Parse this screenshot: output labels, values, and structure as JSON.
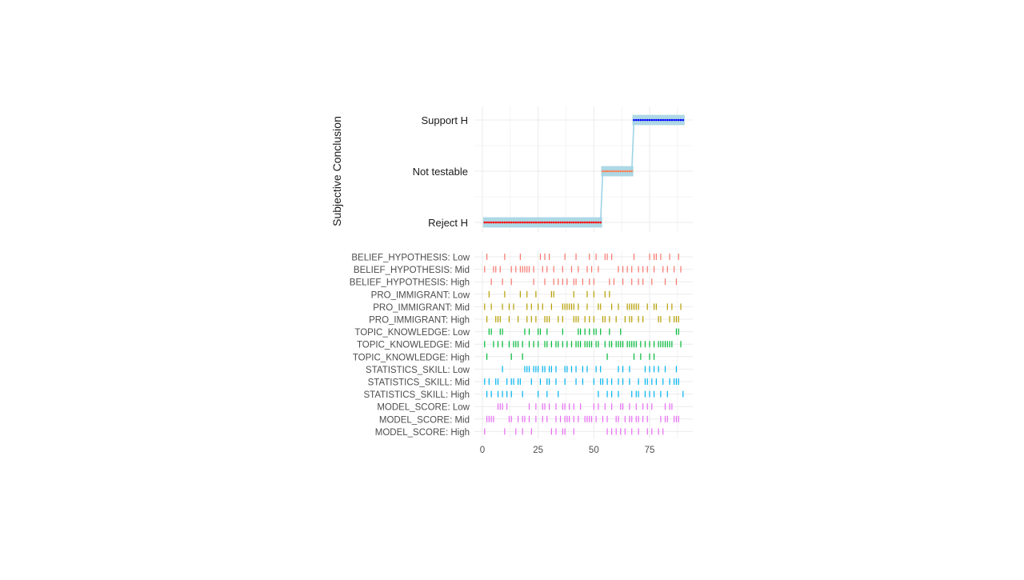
{
  "colors": {
    "ribbon": "#add8e6",
    "ribbon_line": "#9fd3e6",
    "reject": "#ff0000",
    "not_testable": "#ff7f50",
    "support": "#0000ff",
    "grid": "#ebebeb",
    "belief": "#f8766d",
    "pro_immigrant": "#b79f00",
    "topic": "#00ba38",
    "statistics": "#00b4f0",
    "model": "#e76bf3"
  },
  "chart_data": [
    {
      "type": "line",
      "ylabel": "Subjective Conclusion",
      "xlabel": "",
      "categories_y": [
        "Reject H",
        "Not testable",
        "Support H"
      ],
      "xlim": [
        0,
        90
      ],
      "grid": true,
      "segments": [
        {
          "level": "Reject H",
          "x_start": 1,
          "x_end": 53,
          "ribbon": [
            -0.1,
            0.1
          ],
          "point_color": "reject"
        },
        {
          "level": "Not testable",
          "x_start": 54,
          "x_end": 67,
          "ribbon": [
            -0.1,
            0.1
          ],
          "point_color": "not_testable"
        },
        {
          "level": "Support H",
          "x_start": 68,
          "x_end": 90,
          "ribbon": [
            -0.1,
            0.1
          ],
          "point_color": "support"
        }
      ]
    },
    {
      "type": "scatter",
      "mark": "tick",
      "xlim": [
        0,
        90
      ],
      "xticks": [
        0,
        25,
        50,
        75
      ],
      "grid": true,
      "rows": [
        {
          "label": "BELIEF_HYPOTHESIS: Low",
          "color": "belief",
          "x": [
            2,
            10,
            17,
            26,
            28,
            30,
            37,
            42,
            48,
            51,
            55,
            56,
            58,
            68,
            75,
            77,
            78,
            80,
            84,
            88
          ]
        },
        {
          "label": "BELIEF_HYPOTHESIS: Mid",
          "color": "belief",
          "x": [
            1,
            5,
            6,
            8,
            13,
            15,
            17,
            18,
            19,
            20,
            21,
            23,
            27,
            29,
            32,
            36,
            40,
            43,
            47,
            49,
            52,
            61,
            63,
            65,
            67,
            70,
            72,
            74,
            77,
            81,
            83,
            86,
            89
          ]
        },
        {
          "label": "BELIEF_HYPOTHESIS: High",
          "color": "belief",
          "x": [
            4,
            9,
            13,
            23,
            28,
            32,
            34,
            36,
            38,
            41,
            42,
            45,
            48,
            50,
            57,
            59,
            63,
            67,
            70,
            72,
            76,
            82,
            87
          ]
        },
        {
          "label": "PRO_IMMIGRANT: Low",
          "color": "pro_immigrant",
          "x": [
            3,
            10,
            17,
            20,
            24,
            31,
            32,
            41,
            47,
            50,
            55,
            57
          ]
        },
        {
          "label": "PRO_IMMIGRANT: Mid",
          "color": "pro_immigrant",
          "x": [
            1,
            4,
            9,
            12,
            14,
            20,
            22,
            25,
            27,
            31,
            36,
            37,
            38,
            39,
            40,
            41,
            43,
            47,
            52,
            53,
            58,
            61,
            65,
            66,
            67,
            68,
            69,
            70,
            74,
            77,
            78,
            83,
            85,
            89
          ]
        },
        {
          "label": "PRO_IMMIGRANT: High",
          "color": "pro_immigrant",
          "x": [
            2,
            6,
            7,
            8,
            12,
            16,
            20,
            22,
            24,
            28,
            29,
            30,
            34,
            36,
            41,
            42,
            43,
            46,
            48,
            50,
            54,
            55,
            57,
            60,
            64,
            66,
            67,
            70,
            72,
            79,
            80,
            84,
            86,
            87,
            88
          ]
        },
        {
          "label": "TOPIC_KNOWLEDGE: Low",
          "color": "topic",
          "x": [
            3,
            4,
            8,
            9,
            19,
            21,
            25,
            26,
            29,
            36,
            43,
            44,
            46,
            48,
            50,
            51,
            53,
            57,
            62,
            87,
            88
          ]
        },
        {
          "label": "TOPIC_KNOWLEDGE: Mid",
          "color": "topic",
          "x": [
            1,
            5,
            7,
            9,
            12,
            14,
            15,
            16,
            18,
            21,
            23,
            25,
            28,
            29,
            31,
            33,
            34,
            36,
            38,
            40,
            42,
            43,
            44,
            46,
            47,
            48,
            49,
            51,
            52,
            55,
            57,
            58,
            60,
            61,
            62,
            63,
            65,
            66,
            67,
            68,
            69,
            71,
            73,
            75,
            77,
            79,
            80,
            81,
            82,
            83,
            84,
            85,
            89
          ]
        },
        {
          "label": "TOPIC_KNOWLEDGE: High",
          "color": "topic",
          "x": [
            2,
            13,
            18,
            56,
            68,
            71,
            75,
            77
          ]
        },
        {
          "label": "STATISTICS_SKILL: Low",
          "color": "statistics",
          "x": [
            9,
            19,
            20,
            21,
            23,
            24,
            25,
            27,
            28,
            30,
            31,
            33,
            37,
            38,
            40,
            42,
            45,
            47,
            51,
            53,
            61,
            63,
            66,
            73,
            75,
            77,
            79,
            82,
            87
          ]
        },
        {
          "label": "STATISTICS_SKILL: Mid",
          "color": "statistics",
          "x": [
            1,
            3,
            6,
            7,
            11,
            13,
            14,
            16,
            17,
            22,
            26,
            29,
            30,
            33,
            37,
            42,
            45,
            50,
            53,
            54,
            56,
            58,
            61,
            63,
            66,
            70,
            73,
            74,
            76,
            78,
            81,
            84,
            86,
            87,
            88
          ]
        },
        {
          "label": "STATISTICS_SKILL: High",
          "color": "statistics",
          "x": [
            2,
            4,
            7,
            9,
            11,
            13,
            18,
            25,
            29,
            34,
            52,
            56,
            58,
            61,
            67,
            69,
            70,
            73,
            75,
            77,
            80,
            83,
            90
          ]
        },
        {
          "label": "MODEL_SCORE: Low",
          "color": "model",
          "x": [
            7,
            8,
            9,
            11,
            21,
            24,
            27,
            28,
            30,
            33,
            36,
            37,
            39,
            41,
            44,
            50,
            52,
            55,
            58,
            62,
            63,
            66,
            69,
            72,
            74,
            76,
            82,
            84,
            85
          ]
        },
        {
          "label": "MODEL_SCORE: Mid",
          "color": "model",
          "x": [
            2,
            3,
            4,
            5,
            12,
            13,
            16,
            18,
            19,
            21,
            24,
            27,
            29,
            33,
            35,
            37,
            38,
            39,
            41,
            43,
            46,
            47,
            48,
            49,
            51,
            54,
            56,
            60,
            61,
            64,
            66,
            67,
            69,
            70,
            72,
            74,
            80,
            82,
            83,
            86,
            87,
            88
          ]
        },
        {
          "label": "MODEL_SCORE: High",
          "color": "model",
          "x": [
            1,
            10,
            15,
            18,
            22,
            31,
            33,
            36,
            37,
            41,
            56,
            58,
            60,
            62,
            64,
            67,
            70,
            74,
            76,
            79,
            81
          ]
        }
      ]
    }
  ]
}
